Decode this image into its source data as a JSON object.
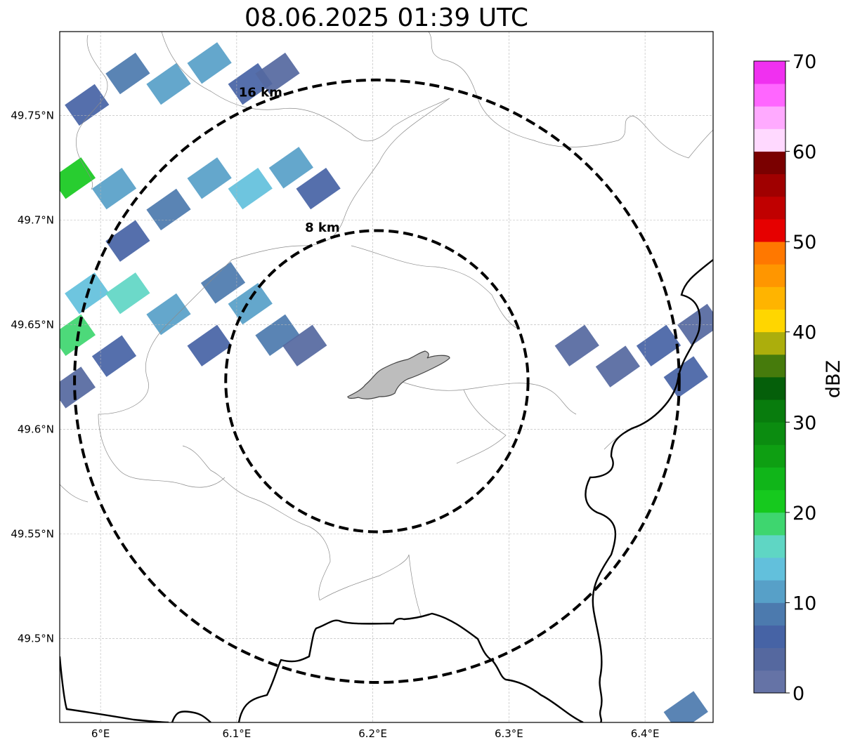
{
  "title": "08.06.2025 01:39 UTC",
  "map": {
    "lon_range": [
      5.97,
      6.45
    ],
    "lat_range": [
      49.46,
      49.79
    ],
    "center": {
      "lon": 6.203,
      "lat": 49.623
    },
    "x_ticks": [
      {
        "value": 6.0,
        "label": "6°E"
      },
      {
        "value": 6.1,
        "label": "6.1°E"
      },
      {
        "value": 6.2,
        "label": "6.2°E"
      },
      {
        "value": 6.3,
        "label": "6.3°E"
      },
      {
        "value": 6.4,
        "label": "6.4°E"
      }
    ],
    "y_ticks": [
      {
        "value": 49.75,
        "label": "49.75°N"
      },
      {
        "value": 49.7,
        "label": "49.7°N"
      },
      {
        "value": 49.65,
        "label": "49.65°N"
      },
      {
        "value": 49.6,
        "label": "49.6°N"
      },
      {
        "value": 49.55,
        "label": "49.55°N"
      },
      {
        "value": 49.5,
        "label": "49.5°N"
      }
    ],
    "gridlines": true,
    "range_rings": [
      {
        "radius_km": 8,
        "label": "8 km"
      },
      {
        "radius_km": 16,
        "label": "16 km"
      }
    ],
    "reflectivity_cells": [
      {
        "lon": 6.02,
        "lat": 49.77,
        "dbz": 8
      },
      {
        "lon": 6.05,
        "lat": 49.765,
        "dbz": 12
      },
      {
        "lon": 6.08,
        "lat": 49.775,
        "dbz": 10
      },
      {
        "lon": 6.11,
        "lat": 49.765,
        "dbz": 6
      },
      {
        "lon": 5.99,
        "lat": 49.755,
        "dbz": 5
      },
      {
        "lon": 6.13,
        "lat": 49.77,
        "dbz": 4
      },
      {
        "lon": 5.98,
        "lat": 49.72,
        "dbz": 20
      },
      {
        "lon": 6.01,
        "lat": 49.715,
        "dbz": 10
      },
      {
        "lon": 6.05,
        "lat": 49.705,
        "dbz": 8
      },
      {
        "lon": 6.08,
        "lat": 49.72,
        "dbz": 12
      },
      {
        "lon": 6.11,
        "lat": 49.715,
        "dbz": 14
      },
      {
        "lon": 6.14,
        "lat": 49.725,
        "dbz": 12
      },
      {
        "lon": 6.16,
        "lat": 49.715,
        "dbz": 6
      },
      {
        "lon": 6.02,
        "lat": 49.69,
        "dbz": 6
      },
      {
        "lon": 5.99,
        "lat": 49.665,
        "dbz": 14
      },
      {
        "lon": 6.02,
        "lat": 49.665,
        "dbz": 16
      },
      {
        "lon": 6.05,
        "lat": 49.655,
        "dbz": 12
      },
      {
        "lon": 5.98,
        "lat": 49.645,
        "dbz": 18
      },
      {
        "lon": 6.09,
        "lat": 49.67,
        "dbz": 8
      },
      {
        "lon": 6.11,
        "lat": 49.66,
        "dbz": 10
      },
      {
        "lon": 6.13,
        "lat": 49.645,
        "dbz": 8
      },
      {
        "lon": 6.15,
        "lat": 49.64,
        "dbz": 4
      },
      {
        "lon": 6.08,
        "lat": 49.64,
        "dbz": 5
      },
      {
        "lon": 6.01,
        "lat": 49.635,
        "dbz": 5
      },
      {
        "lon": 5.98,
        "lat": 49.62,
        "dbz": 4
      },
      {
        "lon": 6.35,
        "lat": 49.64,
        "dbz": 3
      },
      {
        "lon": 6.38,
        "lat": 49.63,
        "dbz": 4
      },
      {
        "lon": 6.41,
        "lat": 49.64,
        "dbz": 5
      },
      {
        "lon": 6.43,
        "lat": 49.625,
        "dbz": 6
      },
      {
        "lon": 6.44,
        "lat": 49.65,
        "dbz": 4
      },
      {
        "lon": 6.43,
        "lat": 49.465,
        "dbz": 8
      }
    ]
  },
  "colorbar": {
    "label": "dBZ",
    "min": 0,
    "max": 70,
    "ticks": [
      {
        "value": 0,
        "label": "0"
      },
      {
        "value": 10,
        "label": "10"
      },
      {
        "value": 20,
        "label": "20"
      },
      {
        "value": 30,
        "label": "30"
      },
      {
        "value": 40,
        "label": "40"
      },
      {
        "value": 50,
        "label": "50"
      },
      {
        "value": 60,
        "label": "60"
      },
      {
        "value": 70,
        "label": "70"
      }
    ],
    "colors": [
      "#6573a6",
      "#55689f",
      "#4663a5",
      "#4c7aae",
      "#57a0c8",
      "#62c0dc",
      "#5fd6c4",
      "#3ed66f",
      "#16c91e",
      "#10b519",
      "#0e9f12",
      "#0b8c10",
      "#087c0d",
      "#055f0a",
      "#467b0c",
      "#acae0c",
      "#ffd600",
      "#ffb400",
      "#ff9600",
      "#ff7800",
      "#e60000",
      "#c00000",
      "#a00000",
      "#7a0000",
      "#ffd9ff",
      "#ffaaff",
      "#ff66ff",
      "#f030f0"
    ]
  }
}
